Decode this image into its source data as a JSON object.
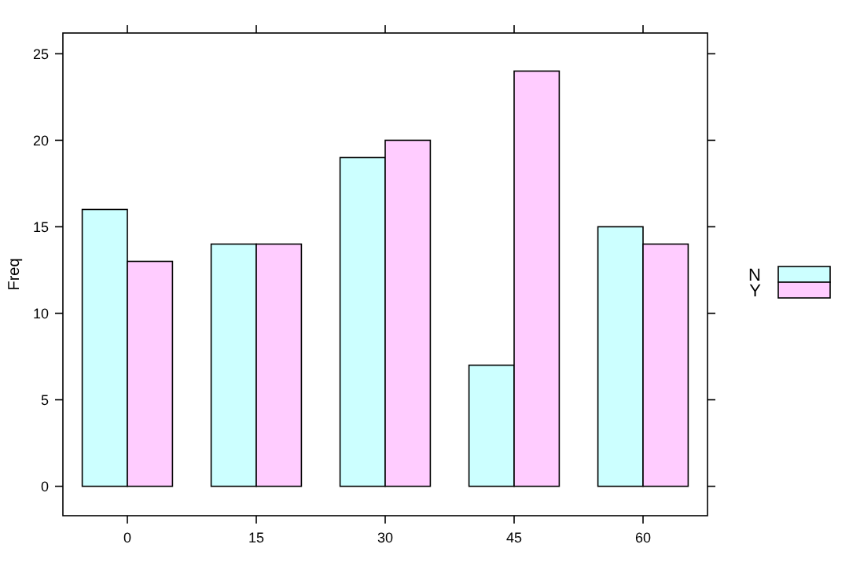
{
  "chart_data": {
    "type": "bar",
    "ylabel": "Freq",
    "categories": [
      "0",
      "15",
      "30",
      "45",
      "60"
    ],
    "series": [
      {
        "name": "N",
        "color": "#ccffff",
        "values": [
          16,
          14,
          19,
          7,
          15
        ]
      },
      {
        "name": "Y",
        "color": "#ffccff",
        "values": [
          13,
          14,
          20,
          24,
          14
        ]
      }
    ],
    "ylim": [
      -1.7,
      26.2
    ],
    "yticks": [
      0,
      5,
      10,
      15,
      20,
      25
    ],
    "legend": "right",
    "grid": false
  }
}
